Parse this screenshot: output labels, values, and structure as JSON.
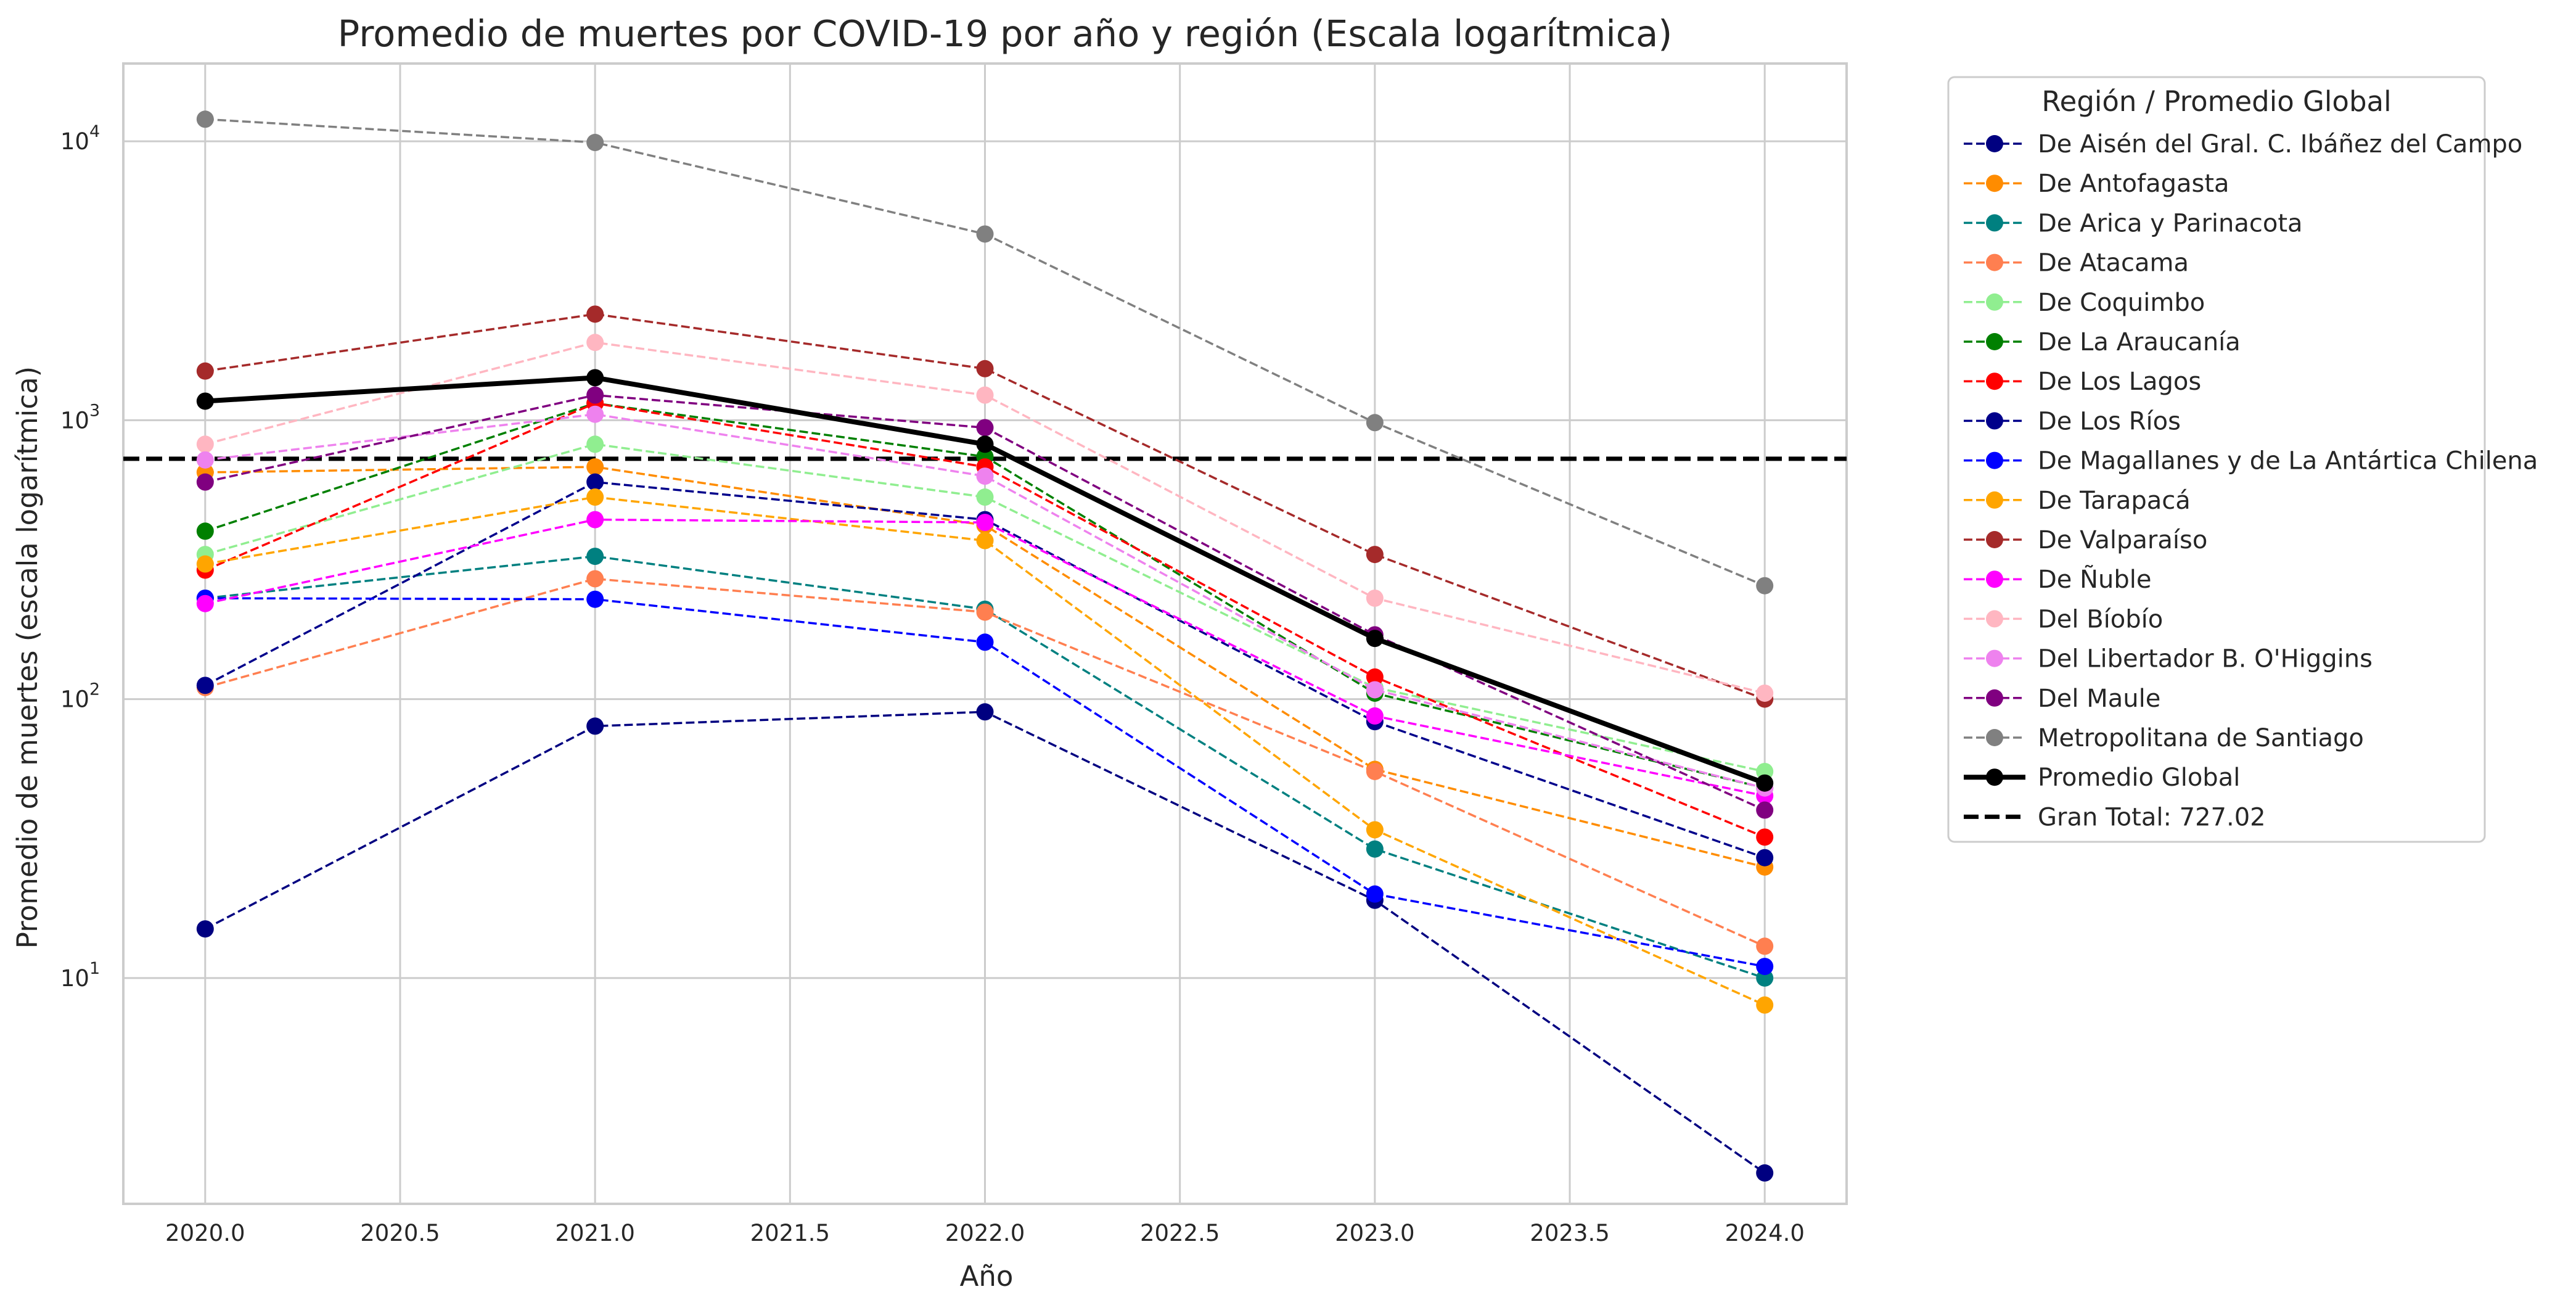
{
  "chart_data": {
    "type": "line",
    "title": "Promedio de muertes por COVID-19 por año y región (Escala logarítmica)",
    "xlabel": "Año",
    "ylabel": "Promedio de muertes (escala logarítmica)",
    "x": [
      2020,
      2021,
      2022,
      2023,
      2024
    ],
    "xlim": [
      2019.79,
      2024.21
    ],
    "ylim": [
      1.55,
      19000
    ],
    "yscale": "log",
    "xticks": [
      "2020.0",
      "2020.5",
      "2021.0",
      "2021.5",
      "2022.0",
      "2022.5",
      "2023.0",
      "2023.5",
      "2024.0"
    ],
    "yticks": [
      {
        "value": 10,
        "base": "10",
        "exp": "1"
      },
      {
        "value": 100,
        "base": "10",
        "exp": "2"
      },
      {
        "value": 1000,
        "base": "10",
        "exp": "3"
      },
      {
        "value": 10000,
        "base": "10",
        "exp": "4"
      }
    ],
    "grid": true,
    "legend": {
      "title": "Región / Promedio Global",
      "placement": "outside right"
    },
    "series": [
      {
        "name": "De Aisén del Gral. C. Ibáñez del Campo",
        "color": "#000080",
        "style": "dashed",
        "values": [
          15,
          80,
          90,
          19,
          2
        ]
      },
      {
        "name": "De Antofagasta",
        "color": "#ff8c00",
        "style": "dashed",
        "values": [
          650,
          680,
          420,
          56,
          25
        ]
      },
      {
        "name": "De Arica y Parinacota",
        "color": "#008080",
        "style": "dashed",
        "values": [
          230,
          325,
          210,
          29,
          10
        ]
      },
      {
        "name": "De Atacama",
        "color": "#ff7f50",
        "style": "dashed",
        "values": [
          110,
          270,
          205,
          55,
          13
        ]
      },
      {
        "name": "De Coquimbo",
        "color": "#90ee90",
        "style": "dashed",
        "values": [
          330,
          820,
          530,
          110,
          55
        ]
      },
      {
        "name": "De La Araucanía",
        "color": "#008000",
        "style": "dashed",
        "values": [
          400,
          1150,
          740,
          105,
          48
        ]
      },
      {
        "name": "De Los Lagos",
        "color": "#ff0000",
        "style": "dashed",
        "values": [
          290,
          1150,
          680,
          120,
          32
        ]
      },
      {
        "name": "De Los Ríos",
        "color": "#00008b",
        "style": "dashed",
        "values": [
          112,
          600,
          440,
          83,
          27
        ]
      },
      {
        "name": "De Magallanes y de La Antártica Chilena",
        "color": "#0000ff",
        "style": "dashed",
        "values": [
          230,
          228,
          160,
          20,
          11
        ]
      },
      {
        "name": "De Tarapacá",
        "color": "#ffa500",
        "style": "dashed",
        "values": [
          305,
          530,
          370,
          34,
          8
        ]
      },
      {
        "name": "De Valparaíso",
        "color": "#a52a2a",
        "style": "dashed",
        "values": [
          1500,
          2400,
          1530,
          330,
          100
        ]
      },
      {
        "name": "De Ñuble",
        "color": "#ff00ff",
        "style": "dashed",
        "values": [
          220,
          440,
          430,
          87,
          45
        ]
      },
      {
        "name": "Del Bíobío",
        "color": "#ffb6c1",
        "style": "dashed",
        "values": [
          820,
          1900,
          1230,
          230,
          105
        ]
      },
      {
        "name": "Del Libertador B. O'Higgins",
        "color": "#ee82ee",
        "style": "dashed",
        "values": [
          720,
          1050,
          630,
          108,
          48
        ]
      },
      {
        "name": "Del Maule",
        "color": "#800080",
        "style": "dashed",
        "values": [
          600,
          1230,
          940,
          170,
          40
        ]
      },
      {
        "name": "Metropolitana de Santiago",
        "color": "#808080",
        "style": "dashed",
        "values": [
          12000,
          9900,
          4650,
          980,
          255
        ]
      },
      {
        "name": "Promedio Global",
        "color": "#000000",
        "style": "solid",
        "values": [
          1170,
          1420,
          820,
          165,
          50
        ]
      }
    ],
    "reference_line": {
      "label": "Gran Total: 727.02",
      "value": 727.02,
      "color": "#000000",
      "style": "dashed"
    }
  }
}
